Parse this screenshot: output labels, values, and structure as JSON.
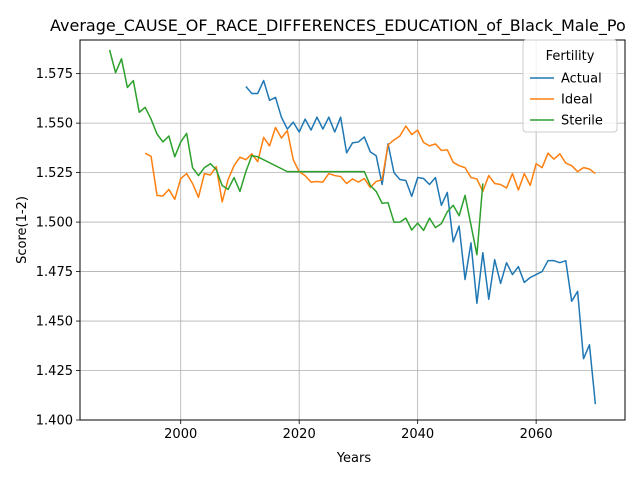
{
  "chart_data": {
    "type": "line",
    "title": "Average_CAUSE_OF_RACE_DIFFERENCES_EDUCATION_of_Black_Male_Po",
    "xlabel": "Years",
    "ylabel": "Score(1-2)",
    "xlim": [
      1983,
      2075
    ],
    "ylim": [
      1.4,
      1.592
    ],
    "grid": true,
    "legend": {
      "title": "Fertility",
      "placement": "top-right"
    },
    "x_ticks": [
      2000,
      2020,
      2040,
      2060
    ],
    "x_tick_labels": [
      "2000",
      "2020",
      "2040",
      "2060"
    ],
    "y_ticks": [
      1.4,
      1.425,
      1.45,
      1.475,
      1.5,
      1.525,
      1.55,
      1.575
    ],
    "y_tick_labels": [
      "1.400",
      "1.425",
      "1.450",
      "1.475",
      "1.500",
      "1.525",
      "1.550",
      "1.575"
    ],
    "series": [
      {
        "name": "Actual",
        "color": "#1f77b4",
        "x": [
          2011,
          2012,
          2013,
          2014,
          2015,
          2016,
          2017,
          2018,
          2019,
          2020,
          2021,
          2022,
          2023,
          2024,
          2025,
          2026,
          2027,
          2028,
          2029,
          2030,
          2031,
          2032,
          2033,
          2034,
          2035,
          2036,
          2037,
          2038,
          2039,
          2040,
          2041,
          2042,
          2043,
          2044,
          2045,
          2046,
          2047,
          2048,
          2049,
          2050,
          2051,
          2052,
          2053,
          2054,
          2055,
          2056,
          2057,
          2058,
          2059,
          2060,
          2061,
          2062,
          2063,
          2064,
          2065,
          2066,
          2067,
          2068,
          2069,
          2070
        ],
        "values": [
          1.5685,
          1.565,
          1.565,
          1.5715,
          1.5615,
          1.563,
          1.553,
          1.547,
          1.5505,
          1.5455,
          1.552,
          1.5465,
          1.553,
          1.547,
          1.553,
          1.5455,
          1.553,
          1.535,
          1.54,
          1.5405,
          1.543,
          1.5355,
          1.5335,
          1.519,
          1.5395,
          1.525,
          1.5215,
          1.521,
          1.513,
          1.5225,
          1.522,
          1.519,
          1.5225,
          1.5085,
          1.515,
          1.49,
          1.498,
          1.471,
          1.4895,
          1.459,
          1.4845,
          1.461,
          1.481,
          1.469,
          1.4795,
          1.4735,
          1.4775,
          1.4695,
          1.472,
          1.4735,
          1.475,
          1.4805,
          1.4805,
          1.4795,
          1.4805,
          1.46,
          1.465,
          1.431,
          1.438,
          1.408
        ]
      },
      {
        "name": "Ideal",
        "color": "#ff7f0e",
        "x": [
          1994,
          1995,
          1996,
          1997,
          1998,
          1999,
          2000,
          2001,
          2002,
          2003,
          2004,
          2005,
          2006,
          2007,
          2008,
          2009,
          2010,
          2011,
          2012,
          2013,
          2014,
          2015,
          2016,
          2017,
          2018,
          2019,
          2020,
          2021,
          2022,
          2023,
          2024,
          2025,
          2026,
          2027,
          2028,
          2029,
          2030,
          2031,
          2032,
          2033,
          2034,
          2035,
          2036,
          2037,
          2038,
          2039,
          2040,
          2041,
          2042,
          2043,
          2044,
          2045,
          2046,
          2047,
          2048,
          2049,
          2050,
          2051,
          2052,
          2053,
          2054,
          2055,
          2056,
          2057,
          2058,
          2059,
          2060,
          2061,
          2062,
          2063,
          2064,
          2065,
          2066,
          2067,
          2068,
          2069,
          2070
        ],
        "values": [
          1.5348,
          1.5332,
          1.5135,
          1.5132,
          1.5165,
          1.5115,
          1.522,
          1.5245,
          1.5195,
          1.5125,
          1.5245,
          1.5238,
          1.528,
          1.5102,
          1.5215,
          1.5285,
          1.5328,
          1.5315,
          1.5345,
          1.5305,
          1.5428,
          1.5385,
          1.5478,
          1.5425,
          1.5462,
          1.5315,
          1.5255,
          1.5235,
          1.5202,
          1.5205,
          1.5202,
          1.5245,
          1.5235,
          1.523,
          1.5195,
          1.5218,
          1.5202,
          1.522,
          1.5175,
          1.5205,
          1.5215,
          1.539,
          1.5415,
          1.5435,
          1.5485,
          1.5442,
          1.5465,
          1.5402,
          1.5385,
          1.5395,
          1.5362,
          1.5365,
          1.5302,
          1.5285,
          1.5275,
          1.5225,
          1.5218,
          1.5155,
          1.5235,
          1.5195,
          1.519,
          1.5172,
          1.5245,
          1.5162,
          1.5245,
          1.5185,
          1.5295,
          1.5275,
          1.5348,
          1.5318,
          1.5345,
          1.5298,
          1.5285,
          1.5255,
          1.5275,
          1.5268,
          1.5245
        ]
      },
      {
        "name": "Sterile",
        "color": "#2ca02c",
        "x": [
          1988,
          1989,
          1990,
          1991,
          1992,
          1993,
          1994,
          1995,
          1996,
          1997,
          1998,
          1999,
          2000,
          2001,
          2002,
          2003,
          2004,
          2005,
          2006,
          2007,
          2008,
          2009,
          2010,
          2011,
          2012,
          2013,
          2018,
          2031,
          2032,
          2033,
          2034,
          2035,
          2036,
          2037,
          2038,
          2039,
          2040,
          2041,
          2042,
          2043,
          2044,
          2045,
          2046,
          2047,
          2048,
          2049,
          2050,
          2051
        ],
        "values": [
          1.587,
          1.5755,
          1.5825,
          1.568,
          1.5715,
          1.5555,
          1.558,
          1.552,
          1.5445,
          1.5405,
          1.5435,
          1.533,
          1.5405,
          1.5448,
          1.5275,
          1.5235,
          1.5275,
          1.5295,
          1.5265,
          1.5185,
          1.5165,
          1.5225,
          1.5155,
          1.5255,
          1.5335,
          1.533,
          1.5255,
          1.5255,
          1.5185,
          1.5155,
          1.5095,
          1.5098,
          1.5,
          1.5,
          1.502,
          1.496,
          1.4995,
          1.4958,
          1.502,
          1.4972,
          1.4992,
          1.5052,
          1.5085,
          1.5032,
          1.5135,
          1.4985,
          1.4835,
          1.5195
        ]
      }
    ]
  }
}
